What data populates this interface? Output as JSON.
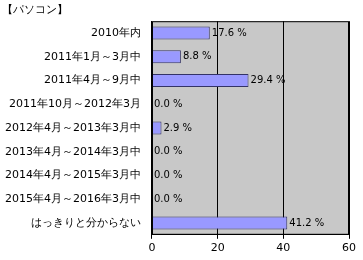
{
  "chart_data": {
    "type": "bar",
    "title": "【パソコン】",
    "orientation": "horizontal",
    "categories": [
      "2010年内",
      "2011年1月～3月中",
      "2011年4月～9月中",
      "2011年10月～2012年3月",
      "2012年4月～2013年3月中",
      "2013年4月～2014年3月中",
      "2014年4月～2015年3月中",
      "2015年4月～2016年3月中",
      "はっきりと分からない"
    ],
    "values": [
      17.6,
      8.8,
      29.4,
      0.0,
      2.9,
      0.0,
      0.0,
      0.0,
      41.2
    ],
    "value_labels": [
      "17.6 %",
      "8.8 %",
      "29.4 %",
      "0.0 %",
      "2.9 %",
      "0.0 %",
      "0.0 %",
      "0.0 %",
      "41.2 %"
    ],
    "data_labels": true,
    "color": "#9999ff",
    "xlim": [
      0,
      60
    ],
    "xticks": [
      0,
      20,
      40,
      60
    ],
    "grid": true
  }
}
